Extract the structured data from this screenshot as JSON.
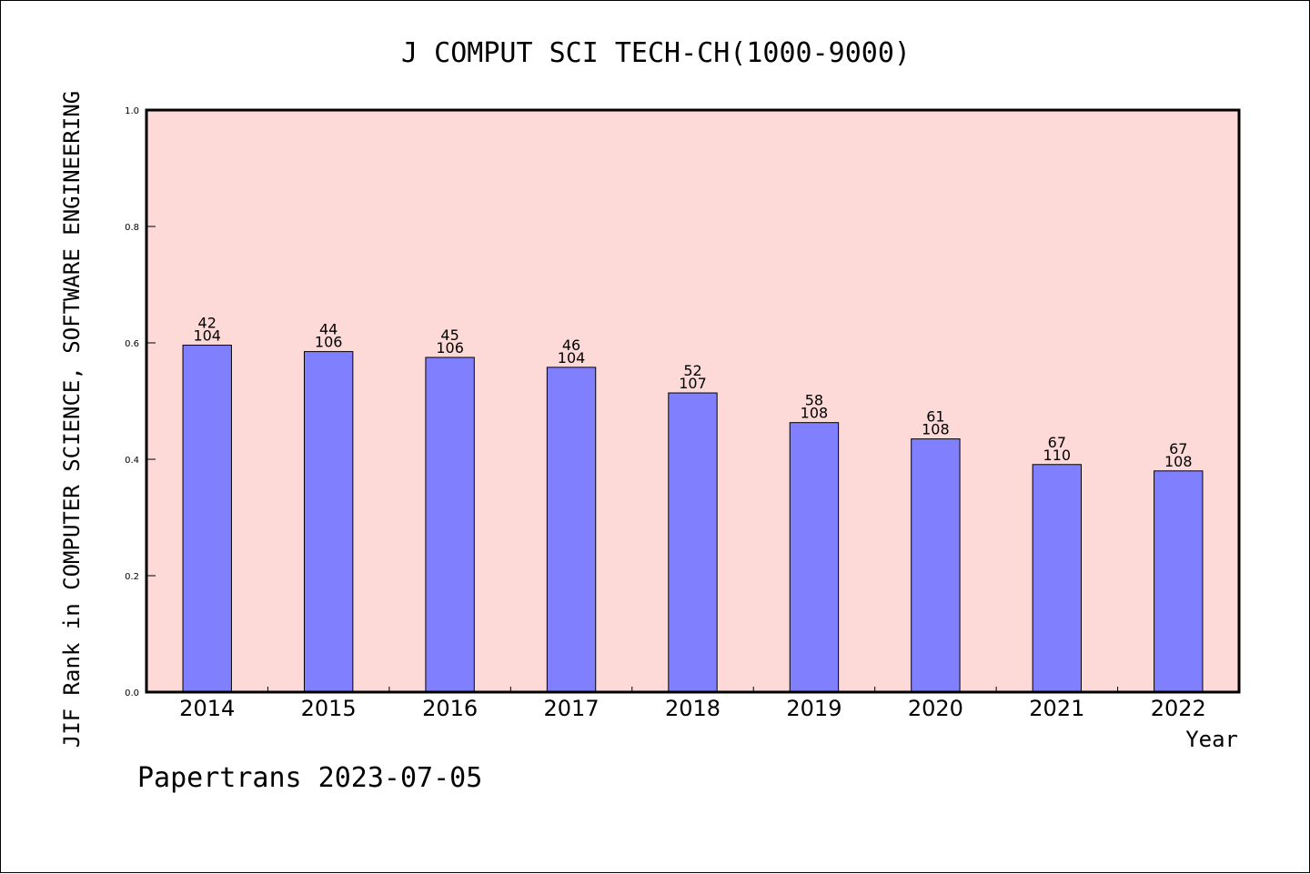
{
  "chart_data": {
    "type": "bar",
    "title": "J COMPUT SCI TECH-CH(1000-9000)",
    "xlabel": "Year",
    "ylabel": "JIF Rank in COMPUTER SCIENCE, SOFTWARE ENGINEERING",
    "ylim": [
      0,
      1.0
    ],
    "yticks": [
      "0.0",
      "0.2",
      "0.4",
      "0.6",
      "0.8",
      "1.0"
    ],
    "grid": false,
    "categories": [
      "2014",
      "2015",
      "2016",
      "2017",
      "2018",
      "2019",
      "2020",
      "2021",
      "2022"
    ],
    "values": [
      0.596,
      0.585,
      0.575,
      0.558,
      0.514,
      0.463,
      0.435,
      0.391,
      0.38
    ],
    "rank_labels": [
      "42",
      "44",
      "45",
      "46",
      "52",
      "58",
      "61",
      "67",
      "67"
    ],
    "total_labels": [
      "104",
      "106",
      "106",
      "104",
      "107",
      "108",
      "108",
      "110",
      "108"
    ],
    "colors": {
      "plot_background": "#fdd9d7",
      "bar_fill": "#8080ff",
      "bar_stroke": "#000000"
    }
  },
  "footer": {
    "watermark": "Papertrans 2023-07-05"
  }
}
